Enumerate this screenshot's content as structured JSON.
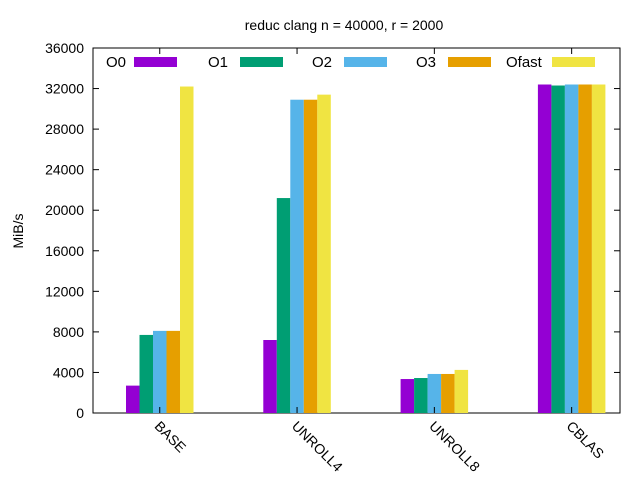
{
  "chart_data": {
    "type": "bar",
    "title": "reduc clang n = 40000, r = 2000",
    "ylabel": "MiB/s",
    "xlabel": "",
    "ylim": [
      0,
      36000
    ],
    "yticks": [
      "0",
      "4000",
      "8000",
      "12000",
      "16000",
      "20000",
      "24000",
      "28000",
      "32000",
      "36000"
    ],
    "categories": [
      "BASE",
      "UNROLL4",
      "UNROLL8",
      "CBLAS"
    ],
    "series": [
      {
        "name": "O0",
        "color": "#9400d3",
        "values": [
          2700,
          7200,
          3350,
          32400
        ]
      },
      {
        "name": "O1",
        "color": "#009e73",
        "values": [
          7700,
          21200,
          3450,
          32300
        ]
      },
      {
        "name": "O2",
        "color": "#56b4e9",
        "values": [
          8100,
          30900,
          3850,
          32400
        ]
      },
      {
        "name": "O3",
        "color": "#e69f00",
        "values": [
          8100,
          30900,
          3850,
          32400
        ]
      },
      {
        "name": "Ofast",
        "color": "#f0e442",
        "values": [
          32200,
          31400,
          4250,
          32400
        ]
      }
    ],
    "legend_position": "top",
    "grid": false
  }
}
